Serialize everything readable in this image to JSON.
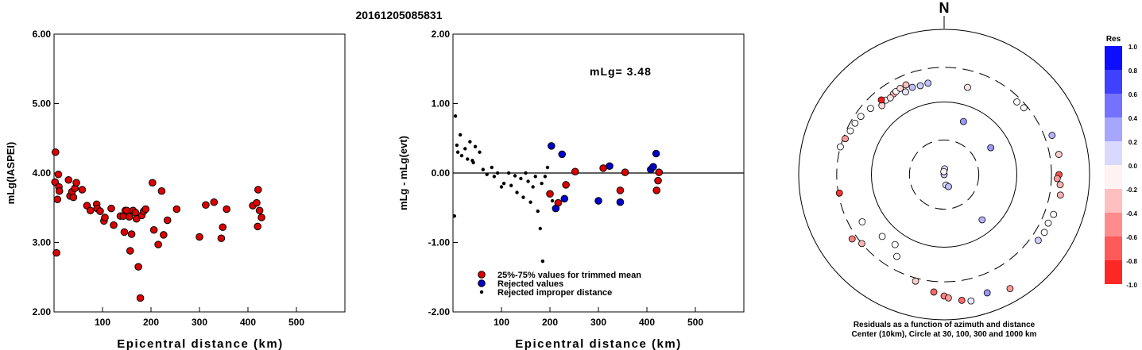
{
  "title": "20161205085831",
  "chart_data": [
    {
      "type": "scatter",
      "ylabel": "mLg(IASPEI)",
      "xlabel": "Epicentral distance (km)",
      "xlim": [
        0,
        600
      ],
      "ylim": [
        2.0,
        6.0
      ],
      "x_ticks": [
        "100",
        "200",
        "300",
        "400",
        "500"
      ],
      "y_ticks": [
        "2.00",
        "3.00",
        "4.00",
        "5.00",
        "6.00"
      ],
      "grid": false,
      "points": [
        [
          3,
          4.3
        ],
        [
          5,
          2.85
        ],
        [
          2,
          3.87
        ],
        [
          9,
          3.98
        ],
        [
          7,
          3.62
        ],
        [
          10,
          3.8
        ],
        [
          11,
          3.74
        ],
        [
          30,
          3.9
        ],
        [
          33,
          3.67
        ],
        [
          37,
          3.73
        ],
        [
          40,
          3.65
        ],
        [
          43,
          3.78
        ],
        [
          46,
          3.86
        ],
        [
          58,
          3.76
        ],
        [
          68,
          3.53
        ],
        [
          75,
          3.46
        ],
        [
          88,
          3.55
        ],
        [
          89,
          3.49
        ],
        [
          95,
          3.45
        ],
        [
          103,
          3.31
        ],
        [
          105,
          3.36
        ],
        [
          118,
          3.49
        ],
        [
          123,
          3.25
        ],
        [
          137,
          3.38
        ],
        [
          143,
          3.38
        ],
        [
          145,
          3.15
        ],
        [
          147,
          3.46
        ],
        [
          150,
          3.46
        ],
        [
          155,
          3.37
        ],
        [
          157,
          2.88
        ],
        [
          160,
          3.12
        ],
        [
          163,
          3.46
        ],
        [
          168,
          3.43
        ],
        [
          170,
          3.34
        ],
        [
          174,
          2.65
        ],
        [
          178,
          2.2
        ],
        [
          181,
          3.39
        ],
        [
          185,
          3.45
        ],
        [
          189,
          3.48
        ],
        [
          203,
          3.86
        ],
        [
          206,
          3.18
        ],
        [
          215,
          2.97
        ],
        [
          222,
          3.74
        ],
        [
          226,
          3.11
        ],
        [
          234,
          3.32
        ],
        [
          253,
          3.48
        ],
        [
          300,
          3.08
        ],
        [
          313,
          3.54
        ],
        [
          330,
          3.58
        ],
        [
          345,
          3.06
        ],
        [
          348,
          3.22
        ],
        [
          356,
          3.48
        ],
        [
          410,
          3.53
        ],
        [
          418,
          3.57
        ],
        [
          421,
          3.76
        ],
        [
          420,
          3.23
        ],
        [
          424,
          3.46
        ],
        [
          428,
          3.36
        ]
      ]
    },
    {
      "type": "scatter",
      "ylabel": "mLg - mLg(evt)",
      "xlabel": "Epicentral distance (km)",
      "xlim": [
        0,
        600
      ],
      "ylim": [
        -2.0,
        2.0
      ],
      "x_ticks": [
        "100",
        "200",
        "300",
        "400",
        "500"
      ],
      "y_ticks": [
        "-2.00",
        "-1.00",
        "0.00",
        "1.00",
        "2.00"
      ],
      "annotation": "mLg= 3.48",
      "reference_line": 0,
      "legend": [
        {
          "label": "25%-75% values for trimmed mean",
          "color": "#dd0000",
          "marker": "circle"
        },
        {
          "label": "Rejected values",
          "color": "#0000cc",
          "marker": "circle"
        },
        {
          "label": "Rejected improper distance",
          "color": "#000000",
          "marker": "dot"
        }
      ],
      "series": [
        {
          "name": "25%-75% values for trimmed mean",
          "color": "#dd0000",
          "points": [
            [
              200,
              -0.3
            ],
            [
              217,
              -0.43
            ],
            [
              233,
              -0.17
            ],
            [
              252,
              0.02
            ],
            [
              310,
              0.07
            ],
            [
              345,
              -0.25
            ],
            [
              355,
              0.01
            ],
            [
              420,
              -0.25
            ],
            [
              423,
              -0.11
            ],
            [
              425,
              0.01
            ]
          ]
        },
        {
          "name": "Rejected values",
          "color": "#0000cc",
          "points": [
            [
              203,
              0.39
            ],
            [
              212,
              -0.51
            ],
            [
              225,
              0.27
            ],
            [
              230,
              -0.37
            ],
            [
              300,
              -0.4
            ],
            [
              323,
              0.1
            ],
            [
              345,
              -0.42
            ],
            [
              408,
              0.05
            ],
            [
              413,
              0.09
            ],
            [
              419,
              0.28
            ]
          ]
        },
        {
          "name": "Rejected improper distance",
          "color": "#000000",
          "points": [
            [
              3,
              -0.62
            ],
            [
              5,
              0.82
            ],
            [
              8,
              0.4
            ],
            [
              10,
              0.3
            ],
            [
              15,
              0.55
            ],
            [
              18,
              0.25
            ],
            [
              25,
              0.35
            ],
            [
              30,
              0.2
            ],
            [
              35,
              0.45
            ],
            [
              40,
              0.18
            ],
            [
              42,
              0.15
            ],
            [
              46,
              0.38
            ],
            [
              55,
              0.3
            ],
            [
              62,
              0.05
            ],
            [
              70,
              -0.02
            ],
            [
              80,
              0.08
            ],
            [
              85,
              -0.05
            ],
            [
              92,
              0.0
            ],
            [
              100,
              -0.2
            ],
            [
              105,
              -0.15
            ],
            [
              115,
              0.0
            ],
            [
              120,
              -0.18
            ],
            [
              128,
              -0.04
            ],
            [
              132,
              -0.28
            ],
            [
              140,
              -0.08
            ],
            [
              145,
              -0.35
            ],
            [
              150,
              0.0
            ],
            [
              155,
              -0.12
            ],
            [
              160,
              -0.42
            ],
            [
              165,
              -0.2
            ],
            [
              170,
              -0.05
            ],
            [
              175,
              -0.55
            ],
            [
              180,
              -0.8
            ],
            [
              183,
              -0.15
            ],
            [
              185,
              -1.27
            ],
            [
              190,
              -0.05
            ],
            [
              195,
              0.08
            ],
            [
              205,
              -0.4
            ]
          ]
        }
      ]
    },
    {
      "type": "scatter",
      "north_label": "N",
      "caption_line1": "Residuals as a function of azimuth and distance",
      "caption_line2": "Center (10km), Circle at 30, 100, 300 and 1000 km",
      "colorbar_title": "Res",
      "colorbar_ticks": [
        "1.0",
        "0.8",
        "0.6",
        "0.4",
        "0.2",
        "0.0",
        "-0.2",
        "-0.4",
        "-0.6",
        "-0.8",
        "-1.0"
      ],
      "rings_km": [
        30,
        100,
        300,
        1000
      ],
      "points_azimuth_distance_residual": [
        [
          0,
          10,
          0.2
        ],
        [
          5,
          12,
          0.15
        ],
        [
          355,
          11,
          -0.05
        ],
        [
          170,
          14,
          0.1
        ],
        [
          160,
          15,
          0.25
        ],
        [
          60,
          55,
          0.4
        ],
        [
          140,
          65,
          0.3
        ],
        [
          20,
          60,
          0.4
        ],
        [
          335,
          180,
          0.1
        ],
        [
          340,
          190,
          0.25
        ],
        [
          345,
          185,
          0.2
        ],
        [
          350,
          190,
          0.25
        ],
        [
          15,
          175,
          -0.1
        ],
        [
          318,
          190,
          -0.15
        ],
        [
          322,
          200,
          0.0
        ],
        [
          328,
          205,
          -0.3
        ],
        [
          325,
          195,
          -0.1
        ],
        [
          330,
          210,
          0.0
        ],
        [
          333,
          215,
          -0.15
        ],
        [
          337,
          220,
          -0.25
        ],
        [
          320,
          220,
          -0.9
        ],
        [
          312,
          230,
          0.0
        ],
        [
          305,
          250,
          0.0
        ],
        [
          300,
          260,
          0.0
        ],
        [
          295,
          265,
          0.0
        ],
        [
          290,
          280,
          -0.4
        ],
        [
          285,
          300,
          0.0
        ],
        [
          260,
          290,
          -0.8
        ],
        [
          45,
          260,
          0.0
        ],
        [
          50,
          270,
          0.0
        ],
        [
          90,
          380,
          -0.7
        ],
        [
          92,
          360,
          -0.4
        ],
        [
          95,
          400,
          -0.3
        ],
        [
          100,
          420,
          -0.3
        ],
        [
          110,
          400,
          0.0
        ],
        [
          115,
          380,
          0.0
        ],
        [
          120,
          390,
          0.0
        ],
        [
          125,
          380,
          0.2
        ],
        [
          70,
          380,
          0.3
        ],
        [
          80,
          400,
          -0.2
        ],
        [
          215,
          150,
          0.0
        ],
        [
          225,
          160,
          0.0
        ],
        [
          240,
          200,
          0.0
        ],
        [
          210,
          200,
          0.0
        ],
        [
          230,
          300,
          -0.3
        ],
        [
          235,
          350,
          -0.5
        ],
        [
          195,
          330,
          -0.2
        ],
        [
          185,
          420,
          -0.6
        ],
        [
          180,
          470,
          -0.5
        ],
        [
          178,
          500,
          -0.4
        ],
        [
          172,
          560,
          -0.6
        ],
        [
          168,
          600,
          0.1
        ],
        [
          160,
          540,
          0.4
        ],
        [
          150,
          650,
          -0.4
        ]
      ]
    }
  ]
}
